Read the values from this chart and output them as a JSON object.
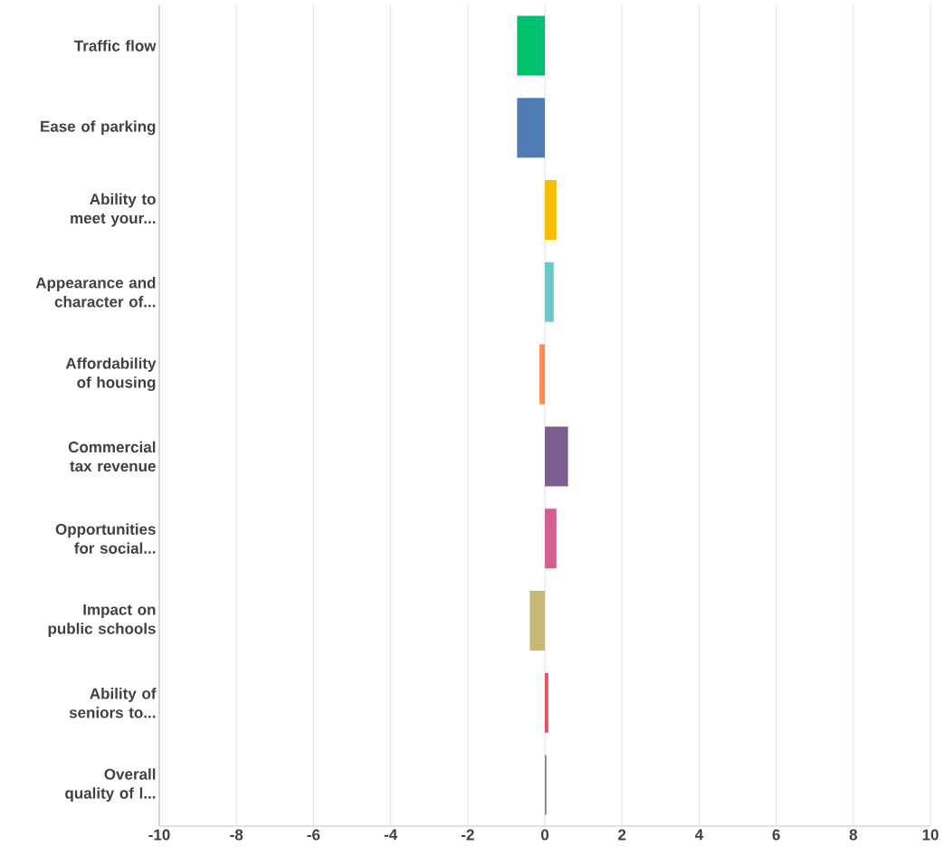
{
  "chart_data": {
    "type": "bar",
    "orientation": "horizontal",
    "categories": [
      "Traffic flow",
      "Ease of parking",
      "Ability to meet your...",
      "Appearance and character of...",
      "Affordability of housing",
      "Commercial tax revenue",
      "Opportunities for social...",
      "Impact on public schools",
      "Ability of seniors to...",
      "Overall quality of l..."
    ],
    "values": [
      -0.72,
      -0.72,
      0.3,
      0.23,
      -0.14,
      0.6,
      0.3,
      -0.39,
      0.09,
      0.04
    ],
    "colors": [
      "#00bf6f",
      "#507cb6",
      "#f9be00",
      "#6bc8cd",
      "#ff8b4f",
      "#7d5e90",
      "#d25f90",
      "#c7b879",
      "#e05260",
      "#768086"
    ],
    "xlim": [
      -10,
      10
    ],
    "xticks": [
      -10,
      -8,
      -6,
      -4,
      -2,
      0,
      2,
      4,
      6,
      8,
      10
    ],
    "grid": "x"
  }
}
